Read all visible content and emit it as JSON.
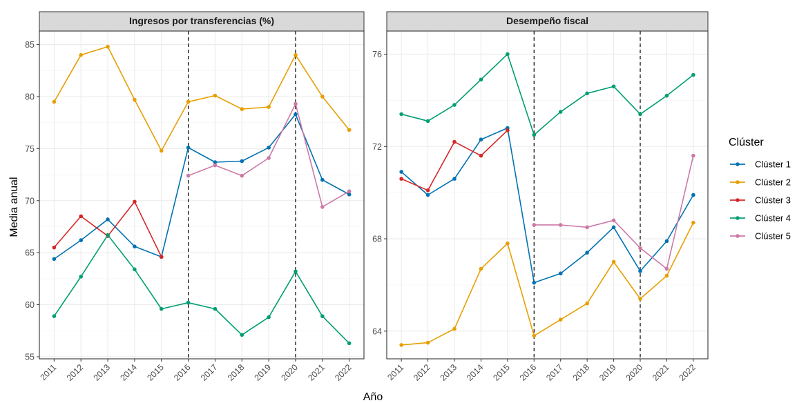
{
  "chart_data": [
    {
      "type": "line",
      "title": "Ingresos por transferencias (%)",
      "x": [
        2011,
        2012,
        2013,
        2014,
        2015,
        2016,
        2017,
        2018,
        2019,
        2020,
        2021,
        2022
      ],
      "ylim": [
        54.8,
        86.3
      ],
      "yticks": [
        55,
        60,
        65,
        70,
        75,
        80,
        85
      ],
      "vlines": [
        2016,
        2020
      ],
      "series": [
        {
          "name": "Clúster 1",
          "values": [
            64.4,
            66.2,
            68.2,
            65.6,
            64.6,
            75.1,
            73.7,
            73.8,
            75.1,
            78.3,
            72.0,
            70.6
          ]
        },
        {
          "name": "Clúster 2",
          "values": [
            79.5,
            84.0,
            84.8,
            79.7,
            74.8,
            79.5,
            80.1,
            78.8,
            79.0,
            84.0,
            80.0,
            76.8
          ]
        },
        {
          "name": "Clúster 3",
          "values": [
            65.5,
            68.5,
            66.6,
            69.9,
            64.6,
            null,
            null,
            null,
            null,
            null,
            null,
            null
          ]
        },
        {
          "name": "Clúster 4",
          "values": [
            58.9,
            62.7,
            66.7,
            63.4,
            59.6,
            60.2,
            59.6,
            57.1,
            58.8,
            63.2,
            58.9,
            56.3
          ]
        },
        {
          "name": "Clúster 5",
          "values": [
            null,
            null,
            null,
            null,
            null,
            72.4,
            73.4,
            72.4,
            74.1,
            79.3,
            69.4,
            70.9
          ]
        }
      ]
    },
    {
      "type": "line",
      "title": "Desempeño fiscal",
      "x": [
        2011,
        2012,
        2013,
        2014,
        2015,
        2016,
        2017,
        2018,
        2019,
        2020,
        2021,
        2022
      ],
      "ylim": [
        62.8,
        77.0
      ],
      "yticks": [
        64,
        68,
        72,
        76
      ],
      "vlines": [
        2016,
        2020
      ],
      "series": [
        {
          "name": "Clúster 1",
          "values": [
            70.9,
            69.9,
            70.6,
            72.3,
            72.8,
            66.1,
            66.5,
            67.4,
            68.5,
            66.6,
            67.9,
            69.9
          ]
        },
        {
          "name": "Clúster 2",
          "values": [
            63.4,
            63.5,
            64.1,
            66.7,
            67.8,
            63.8,
            64.5,
            65.2,
            67.0,
            65.4,
            66.4,
            68.7
          ]
        },
        {
          "name": "Clúster 3",
          "values": [
            70.6,
            70.1,
            72.2,
            71.6,
            72.7,
            null,
            null,
            null,
            null,
            null,
            null,
            null
          ]
        },
        {
          "name": "Clúster 4",
          "values": [
            73.4,
            73.1,
            73.8,
            74.9,
            76.0,
            72.5,
            73.5,
            74.3,
            74.6,
            73.4,
            74.2,
            75.1
          ]
        },
        {
          "name": "Clúster 5",
          "values": [
            null,
            null,
            null,
            null,
            null,
            68.6,
            68.6,
            68.5,
            68.8,
            67.6,
            66.7,
            71.6
          ]
        }
      ]
    }
  ],
  "xlabel": "Año",
  "ylabel": "Media anual",
  "legend": {
    "title": "Clúster",
    "placement": "right",
    "items": [
      {
        "name": "Clúster 1",
        "color": "#0072B2"
      },
      {
        "name": "Clúster 2",
        "color": "#E69F00"
      },
      {
        "name": "Clúster 3",
        "color": "#D62728"
      },
      {
        "name": "Clúster 4",
        "color": "#009E73"
      },
      {
        "name": "Clúster 5",
        "color": "#CC79A7"
      }
    ]
  },
  "colors": {
    "grid": "#ebebeb",
    "strip_fill": "#d9d9d9",
    "panel_border": "#333333",
    "vline": "#000000"
  }
}
